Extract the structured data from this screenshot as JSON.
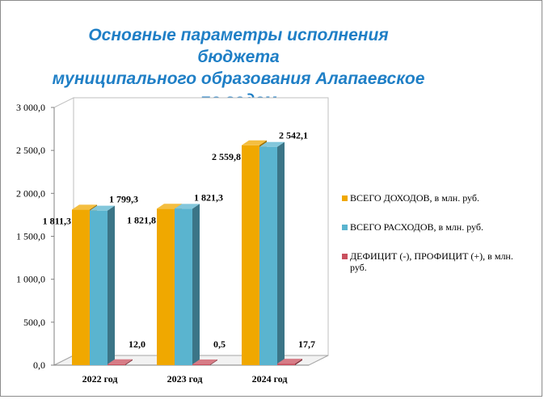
{
  "chart_data": {
    "type": "bar",
    "title_lines": [
      "Основные параметры исполнения бюджета",
      "муниципального образования Алапаевское",
      "по годам"
    ],
    "categories": [
      "2022 год",
      "2023 год",
      "2024 год"
    ],
    "series": [
      {
        "name": "ВСЕГО ДОХОДОВ, в млн. руб.",
        "values": [
          1811.3,
          1821.8,
          2559.8
        ],
        "labels": [
          "1 811,3",
          "1 821,8",
          "2 559,8"
        ],
        "color": "#f0a800"
      },
      {
        "name": "ВСЕГО РАСХОДОВ, в млн. руб.",
        "values": [
          1799.3,
          1821.3,
          2542.1
        ],
        "labels": [
          "1 799,3",
          "1 821,3",
          "2 542,1"
        ],
        "color": "#5ab4cf"
      },
      {
        "name": "ДЕФИЦИТ (-), ПРОФИЦИТ (+), в млн. руб.",
        "values": [
          12.0,
          0.5,
          17.7
        ],
        "labels": [
          "12,0",
          "0,5",
          "17,7"
        ],
        "color": "#c9505e"
      }
    ],
    "y_ticks": [
      0,
      500,
      1000,
      1500,
      2000,
      2500,
      3000
    ],
    "y_tick_labels": [
      "0,0",
      "500,0",
      "1 000,0",
      "1 500,0",
      "2 000,0",
      "2 500,0",
      "3 000,0"
    ],
    "ylim": [
      0,
      3000
    ],
    "grid": false,
    "legend_position": "right",
    "style": "3d-column"
  }
}
